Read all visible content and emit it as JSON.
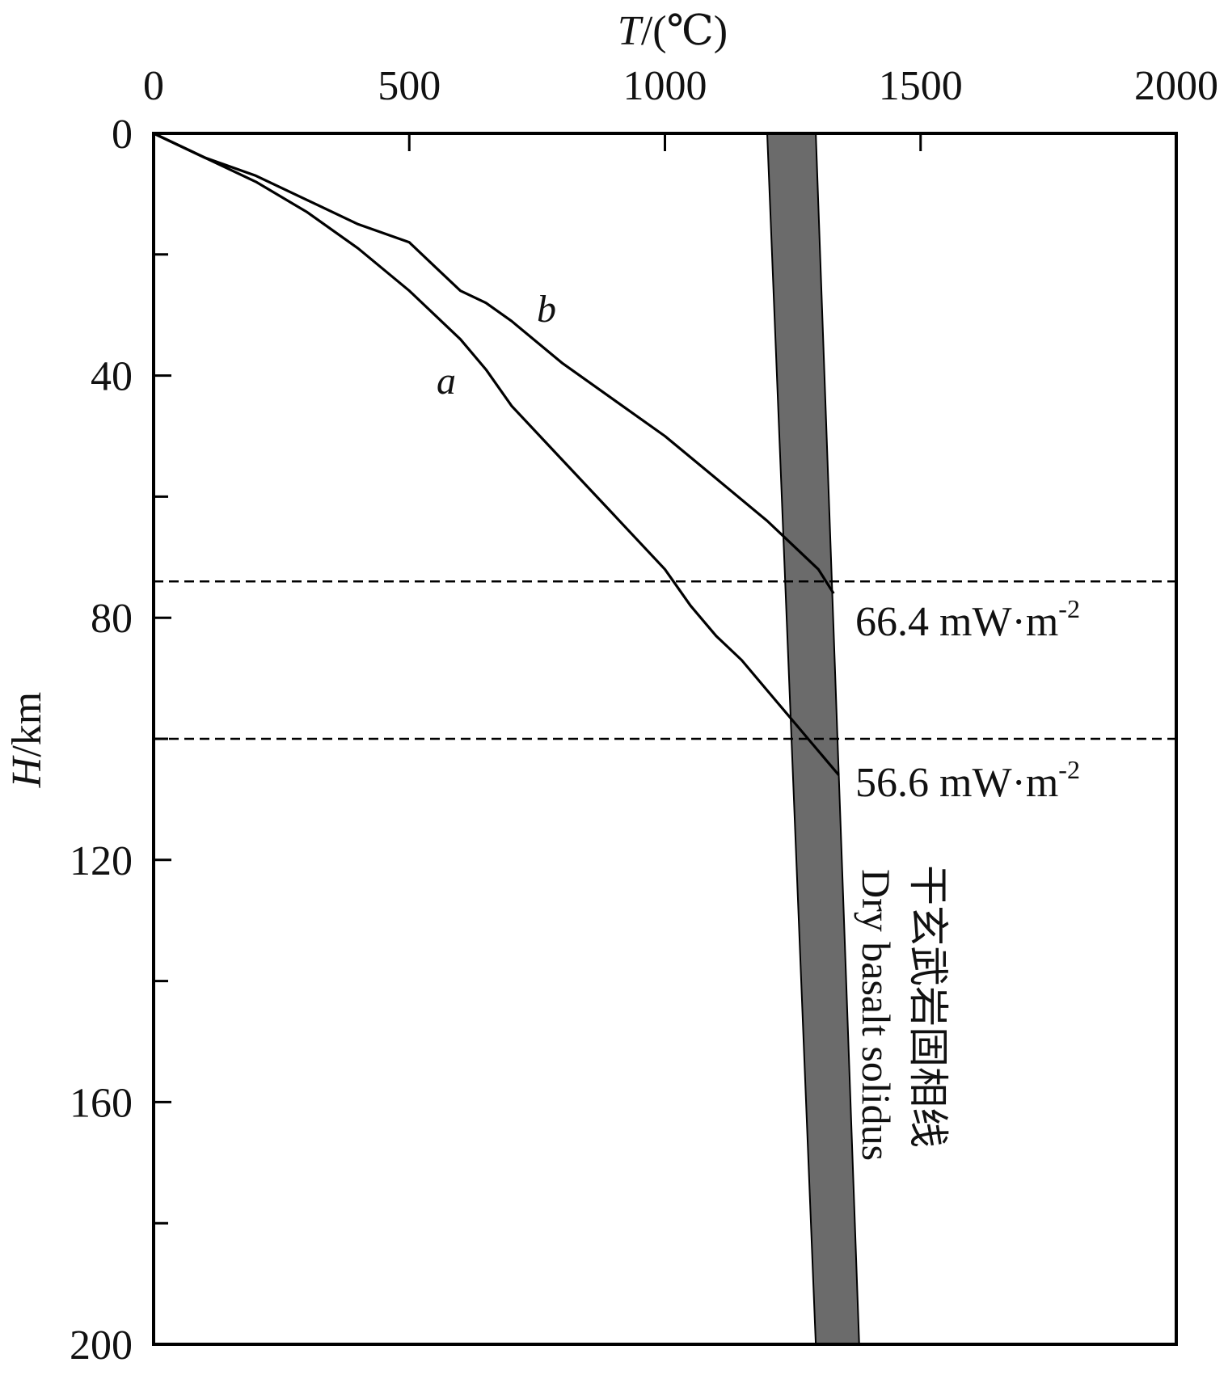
{
  "chart_data": {
    "type": "line",
    "xlabel": {
      "var": "T",
      "unit": "/(℃)"
    },
    "ylabel": {
      "var": "H",
      "unit": "/km"
    },
    "x_axis_position": "top",
    "y_inverted": true,
    "xlim": [
      0,
      2000
    ],
    "ylim": [
      0,
      200
    ],
    "x_ticks": [
      0,
      500,
      1000,
      1500,
      2000
    ],
    "x_tick_labels": [
      "0",
      "500",
      "1000",
      "1500",
      "2000"
    ],
    "y_ticks": [
      0,
      40,
      80,
      120,
      160,
      200
    ],
    "y_tick_labels": [
      "0",
      "40",
      "80",
      "120",
      "160",
      "200"
    ],
    "y_minor_ticks": [
      20,
      60,
      100,
      140,
      180
    ],
    "grid": false,
    "series": [
      {
        "name": "a",
        "heat_flow": {
          "value": "56.6 mW·m",
          "exp": "-2"
        },
        "color": "#000000",
        "points": [
          [
            0,
            0
          ],
          [
            100,
            4
          ],
          [
            200,
            8
          ],
          [
            300,
            13
          ],
          [
            400,
            19
          ],
          [
            500,
            26
          ],
          [
            600,
            34
          ],
          [
            650,
            39
          ],
          [
            700,
            45
          ],
          [
            800,
            54
          ],
          [
            900,
            63
          ],
          [
            1000,
            72
          ],
          [
            1050,
            78
          ],
          [
            1100,
            83
          ],
          [
            1150,
            87
          ],
          [
            1200,
            92
          ],
          [
            1250,
            97
          ],
          [
            1300,
            102
          ],
          [
            1340,
            106
          ]
        ]
      },
      {
        "name": "b",
        "color": "#000000",
        "heat_flow": {
          "value": "66.4 mW·m",
          "exp": "-2"
        },
        "points": [
          [
            0,
            0
          ],
          [
            100,
            4
          ],
          [
            200,
            7
          ],
          [
            300,
            11
          ],
          [
            400,
            15
          ],
          [
            500,
            18
          ],
          [
            550,
            22
          ],
          [
            600,
            26
          ],
          [
            650,
            28
          ],
          [
            700,
            31
          ],
          [
            800,
            38
          ],
          [
            900,
            44
          ],
          [
            1000,
            50
          ],
          [
            1100,
            57
          ],
          [
            1200,
            64
          ],
          [
            1250,
            68
          ],
          [
            1300,
            72
          ],
          [
            1330,
            76
          ]
        ]
      }
    ],
    "reference_lines": [
      {
        "y": 74,
        "style": "dashed"
      },
      {
        "y": 100,
        "style": "dashed"
      }
    ],
    "solidus_band": {
      "label_cn": "干玄武岩固相线",
      "label_en": "Dry basalt solidus",
      "color": "#6b6b6b",
      "left": [
        [
          1200,
          0
        ],
        [
          1295,
          200
        ]
      ],
      "right": [
        [
          1295,
          0
        ],
        [
          1380,
          200
        ]
      ]
    }
  }
}
